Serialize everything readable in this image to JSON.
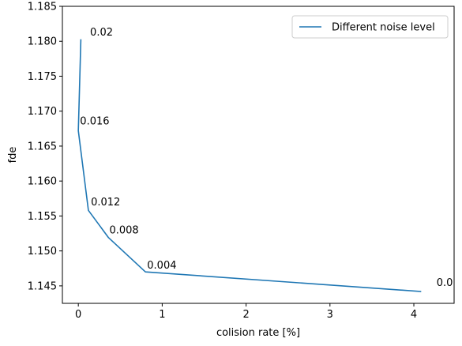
{
  "chart_data": {
    "type": "line",
    "title": "",
    "xlabel": "colision rate [%]",
    "ylabel": "fde",
    "xlim": [
      -0.19,
      4.48
    ],
    "ylim": [
      1.1425,
      1.185
    ],
    "xticks": [
      0,
      1,
      2,
      3,
      4
    ],
    "xtick_labels": [
      "0",
      "1",
      "2",
      "3",
      "4"
    ],
    "yticks": [
      1.145,
      1.15,
      1.155,
      1.16,
      1.165,
      1.17,
      1.175,
      1.18,
      1.185
    ],
    "ytick_labels": [
      "1.145",
      "1.150",
      "1.155",
      "1.160",
      "1.165",
      "1.170",
      "1.175",
      "1.180",
      "1.185"
    ],
    "grid": false,
    "legend": "top-right",
    "series": [
      {
        "name": "Different noise level",
        "color": "#1f77b4",
        "x": [
          4.08,
          0.8,
          0.36,
          0.12,
          0.0,
          0.03
        ],
        "y": [
          1.1442,
          1.147,
          1.1519,
          1.1558,
          1.1672,
          1.1802
        ]
      }
    ],
    "annotations": [
      {
        "text": "0.0",
        "x": 4.27,
        "y": 1.145
      },
      {
        "text": "0.004",
        "x": 0.82,
        "y": 1.1475
      },
      {
        "text": "0.008",
        "x": 0.37,
        "y": 1.1525
      },
      {
        "text": "0.012",
        "x": 0.15,
        "y": 1.1565
      },
      {
        "text": "0.016",
        "x": 0.02,
        "y": 1.1681
      },
      {
        "text": "0.02",
        "x": 0.14,
        "y": 1.1808
      }
    ]
  }
}
